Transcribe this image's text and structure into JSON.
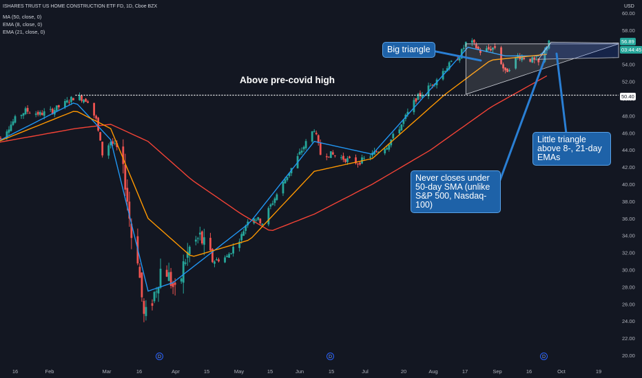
{
  "header": {
    "symbol_line": "ISHARES TRUST US HOME CONSTRUCTION ETF FD, 1D, Cboe BZX",
    "ma_line": "MA (50, close, 0)",
    "ema8_line": "EMA (8, close, 0)",
    "ema21_line": "EMA (21, close, 0)"
  },
  "currency": "USD",
  "price_tags": {
    "last_price": "56.89",
    "countdown": "03:44:45",
    "level": "50.40"
  },
  "annotations": {
    "big_triangle": "Big triangle",
    "pre_covid": "Above pre-covid high",
    "never_closes": "Never closes under 50-day SMA (unlike S&P 500, Nasdaq-100)",
    "little_triangle": "Little triangle above 8-, 21-day EMAs"
  },
  "dividend_marker": "D",
  "colors": {
    "background": "#131722",
    "up_candle": "#26a69a",
    "down_candle": "#ef5350",
    "ema8": "#2196f3",
    "ema21": "#ff9800",
    "ma50": "#f44336",
    "annotation_fill": "#1e62a8"
  },
  "chart_data": {
    "type": "candlestick",
    "title": "ISHARES TRUST US HOME CONSTRUCTION ETF FD, 1D, Cboe BZX",
    "y_axis": {
      "range": [
        20,
        60
      ],
      "ticks": [
        20,
        22,
        24,
        26,
        28,
        30,
        32,
        34,
        36,
        38,
        40,
        42,
        44,
        46,
        48,
        50,
        52,
        54,
        56,
        58,
        60
      ],
      "labels": [
        "20.00",
        "22.00",
        "24.00",
        "26.00",
        "28.00",
        "30.00",
        "32.00",
        "34.00",
        "36.00",
        "38.00",
        "40.00",
        "42.00",
        "44.00",
        "46.00",
        "48.00",
        "50.00",
        "52.00",
        "54.00",
        "56.00",
        "58.00",
        "60.00"
      ]
    },
    "x_axis": {
      "labels": [
        "16",
        "Feb",
        "Mar",
        "16",
        "Apr",
        "15",
        "May",
        "15",
        "Jun",
        "15",
        "Jul",
        "20",
        "Aug",
        "17",
        "Sep",
        "16",
        "Oct",
        "19"
      ]
    },
    "horizontal_level": 50.4,
    "last_price": 56.89,
    "close_path": [
      [
        "Jan 6",
        45.0
      ],
      [
        "Jan 10",
        45.8
      ],
      [
        "Jan 16",
        47.6
      ],
      [
        "Jan 21",
        48.6
      ],
      [
        "Jan 28",
        48.2
      ],
      [
        "Feb 3",
        48.6
      ],
      [
        "Feb 10",
        49.6
      ],
      [
        "Feb 14",
        50.3
      ],
      [
        "Feb 20",
        49.8
      ],
      [
        "Feb 24",
        47.5
      ],
      [
        "Feb 27",
        43.5
      ],
      [
        "Mar 2",
        45.0
      ],
      [
        "Mar 5",
        44.2
      ],
      [
        "Mar 9",
        40.3
      ],
      [
        "Mar 12",
        34.0
      ],
      [
        "Mar 13",
        36.5
      ],
      [
        "Mar 16",
        29.0
      ],
      [
        "Mar 18",
        24.5
      ],
      [
        "Mar 20",
        25.0
      ],
      [
        "Mar 24",
        28.0
      ],
      [
        "Mar 27",
        31.0
      ],
      [
        "Apr 1",
        28.0
      ],
      [
        "Apr 3",
        26.5
      ],
      [
        "Apr 6",
        30.5
      ],
      [
        "Apr 9",
        32.5
      ],
      [
        "Apr 14",
        33.8
      ],
      [
        "Apr 20",
        31.0
      ],
      [
        "Apr 27",
        31.5
      ],
      [
        "May 4",
        34.0
      ],
      [
        "May 8",
        36.5
      ],
      [
        "May 14",
        35.5
      ],
      [
        "May 18",
        37.5
      ],
      [
        "May 26",
        41.0
      ],
      [
        "Jun 2",
        44.0
      ],
      [
        "Jun 8",
        46.5
      ],
      [
        "Jun 11",
        43.5
      ],
      [
        "Jun 16",
        43.5
      ],
      [
        "Jun 22",
        43.0
      ],
      [
        "Jun 29",
        42.5
      ],
      [
        "Jul 6",
        43.5
      ],
      [
        "Jul 13",
        44.5
      ],
      [
        "Jul 20",
        47.0
      ],
      [
        "Jul 27",
        50.0
      ],
      [
        "Aug 3",
        51.5
      ],
      [
        "Aug 10",
        53.5
      ],
      [
        "Aug 17",
        55.0
      ],
      [
        "Aug 21",
        57.0
      ],
      [
        "Aug 27",
        55.5
      ],
      [
        "Sep 3",
        56.0
      ],
      [
        "Sep 8",
        53.0
      ],
      [
        "Sep 14",
        55.0
      ],
      [
        "Sep 21",
        54.5
      ],
      [
        "Sep 25",
        54.0
      ],
      [
        "Sep 29",
        56.89
      ]
    ],
    "series": [
      {
        "name": "MA (50, close, 0)",
        "color": "#f44336",
        "values": [
          [
            "Jan 6",
            44.8
          ],
          [
            "Feb 14",
            46.5
          ],
          [
            "Mar 2",
            47.0
          ],
          [
            "Mar 20",
            45.0
          ],
          [
            "Apr 10",
            40.5
          ],
          [
            "May 4",
            36.5
          ],
          [
            "May 18",
            34.5
          ],
          [
            "Jun 8",
            36.5
          ],
          [
            "Jul 6",
            40.0
          ],
          [
            "Aug 3",
            44.0
          ],
          [
            "Sep 1",
            49.0
          ],
          [
            "Sep 29",
            52.8
          ]
        ]
      },
      {
        "name": "EMA (8, close, 0)",
        "color": "#2196f3",
        "values": [
          [
            "Jan 6",
            44.8
          ],
          [
            "Feb 14",
            49.6
          ],
          [
            "Mar 2",
            45.2
          ],
          [
            "Mar 20",
            27.5
          ],
          [
            "Apr 1",
            28.5
          ],
          [
            "May 8",
            35.5
          ],
          [
            "Jun 8",
            45.0
          ],
          [
            "Jul 6",
            43.5
          ],
          [
            "Aug 10",
            53.0
          ],
          [
            "Aug 21",
            56.0
          ],
          [
            "Sep 8",
            55.0
          ],
          [
            "Sep 25",
            55.0
          ],
          [
            "Sep 29",
            56.5
          ]
        ]
      },
      {
        "name": "EMA (21, close, 0)",
        "color": "#ff9800",
        "values": [
          [
            "Jan 6",
            44.8
          ],
          [
            "Feb 14",
            48.6
          ],
          [
            "Mar 2",
            46.5
          ],
          [
            "Mar 20",
            36.0
          ],
          [
            "Apr 10",
            31.5
          ],
          [
            "May 8",
            33.5
          ],
          [
            "Jun 8",
            41.5
          ],
          [
            "Jul 6",
            43.0
          ],
          [
            "Aug 10",
            50.5
          ],
          [
            "Sep 1",
            54.5
          ],
          [
            "Sep 29",
            55.2
          ]
        ]
      }
    ],
    "dividend_dates": [
      "Mar 25",
      "Jun 15",
      "Sep 24"
    ],
    "grid": false,
    "legend": "top-left"
  }
}
